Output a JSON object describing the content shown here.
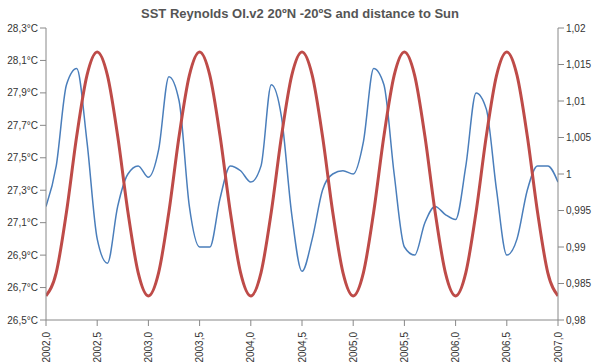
{
  "chart_data": {
    "type": "line",
    "title": "SST Reynolds OI.v2 20ºN -20ºS and distance to Sun",
    "x": [
      2002,
      2002.1,
      2002.2,
      2002.3,
      2002.4,
      2002.5,
      2002.6,
      2002.7,
      2002.8,
      2002.9,
      2003,
      2003.1,
      2003.2,
      2003.3,
      2003.4,
      2003.5,
      2003.6,
      2003.7,
      2003.8,
      2003.9,
      2004,
      2004.1,
      2004.2,
      2004.3,
      2004.4,
      2004.5,
      2004.6,
      2004.7,
      2004.8,
      2004.9,
      2005,
      2005.1,
      2005.2,
      2005.3,
      2005.4,
      2005.5,
      2005.6,
      2005.7,
      2005.8,
      2005.9,
      2006,
      2006.1,
      2006.2,
      2006.3,
      2006.4,
      2006.5,
      2006.6,
      2006.7,
      2006.8,
      2006.9,
      2007
    ],
    "series": [
      {
        "color": "#4a7ebb",
        "values": [
          27.2,
          27.45,
          27.95,
          28.05,
          27.6,
          27.0,
          26.85,
          27.2,
          27.4,
          27.45,
          27.38,
          27.55,
          28.0,
          27.85,
          27.2,
          26.95,
          26.95,
          27.25,
          27.45,
          27.42,
          27.35,
          27.45,
          27.95,
          27.75,
          27.15,
          26.8,
          27.0,
          27.3,
          27.4,
          27.42,
          27.4,
          27.6,
          28.05,
          27.95,
          27.4,
          26.95,
          26.9,
          27.1,
          27.2,
          27.15,
          27.12,
          27.45,
          27.9,
          27.8,
          27.3,
          26.9,
          27.0,
          27.3,
          27.45,
          27.45,
          27.35
        ]
      },
      {
        "color": "#be4b48",
        "axis": "y2",
        "values": [
          0.9833,
          0.9865,
          0.9948,
          1.0052,
          1.0135,
          1.0167,
          1.0135,
          1.0052,
          0.9948,
          0.9865,
          0.9833,
          0.9865,
          0.9948,
          1.0052,
          1.0135,
          1.0167,
          1.0135,
          1.0052,
          0.9948,
          0.9865,
          0.9833,
          0.9865,
          0.9948,
          1.0052,
          1.0135,
          1.0167,
          1.0135,
          1.0052,
          0.9948,
          0.9865,
          0.9833,
          0.9865,
          0.9948,
          1.0052,
          1.0135,
          1.0167,
          1.0135,
          1.0052,
          0.9948,
          0.9865,
          0.9833,
          0.9865,
          0.9948,
          1.0052,
          1.0135,
          1.0167,
          1.0135,
          1.0052,
          0.9948,
          0.9865,
          0.9833
        ]
      }
    ],
    "xlim": [
      2002,
      2007
    ],
    "xticks": [
      {
        "value": 2002,
        "label": "2002,0"
      },
      {
        "value": 2002.5,
        "label": "2002,5"
      },
      {
        "value": 2003,
        "label": "2003,0"
      },
      {
        "value": 2003.5,
        "label": "2003,5"
      },
      {
        "value": 2004,
        "label": "2004,0"
      },
      {
        "value": 2004.5,
        "label": "2004,5"
      },
      {
        "value": 2005,
        "label": "2005,0"
      },
      {
        "value": 2005.5,
        "label": "2005,5"
      },
      {
        "value": 2006,
        "label": "2006,0"
      },
      {
        "value": 2006.5,
        "label": "2006,5"
      },
      {
        "value": 2007,
        "label": "2007,0"
      }
    ],
    "ylim": [
      26.5,
      28.3
    ],
    "yticks": [
      {
        "value": 26.5,
        "label": "26,5°C"
      },
      {
        "value": 26.7,
        "label": "26,7°C"
      },
      {
        "value": 26.9,
        "label": "26,9°C"
      },
      {
        "value": 27.1,
        "label": "27,1°C"
      },
      {
        "value": 27.3,
        "label": "27,3°C"
      },
      {
        "value": 27.5,
        "label": "27,5°C"
      },
      {
        "value": 27.7,
        "label": "27,7°C"
      },
      {
        "value": 27.9,
        "label": "27,9°C"
      },
      {
        "value": 28.1,
        "label": "28,1°C"
      },
      {
        "value": 28.3,
        "label": "28,3°C"
      }
    ],
    "y2lim": [
      0.98,
      1.02
    ],
    "y2ticks": [
      {
        "value": 0.98,
        "label": "0,98"
      },
      {
        "value": 0.985,
        "label": "0,985"
      },
      {
        "value": 0.99,
        "label": "0,99"
      },
      {
        "value": 0.995,
        "label": "0,995"
      },
      1,
      {
        "value": 1.005,
        "label": "1,005"
      },
      {
        "value": 1.01,
        "label": "1,01"
      },
      {
        "value": 1.015,
        "label": "1,015"
      },
      {
        "value": 1.02,
        "label": "1,02"
      }
    ],
    "grid": false
  }
}
